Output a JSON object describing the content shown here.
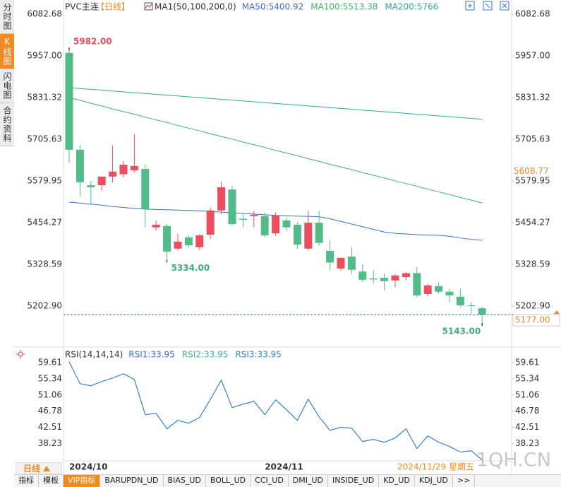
{
  "chart_data": [
    {
      "type": "candlestick",
      "title": "PVC主连",
      "period": "【日线】",
      "indicator": "MA1(50,100,200,0)",
      "up_color": "#ee4d5d",
      "down_color": "#52bb88",
      "categories": [
        "2024/10",
        null,
        null,
        null,
        null,
        null,
        null,
        null,
        null,
        null,
        null,
        null,
        null,
        null,
        null,
        null,
        null,
        null,
        "2024/11",
        null,
        null,
        null,
        null,
        null,
        null,
        null,
        null,
        null,
        null,
        null,
        null,
        null,
        null,
        null,
        null,
        null,
        null,
        null,
        null
      ],
      "open": [
        5966,
        5674,
        5567,
        5567,
        5593,
        5600,
        5612,
        5616,
        5440,
        5444,
        5376,
        5410,
        5380,
        5418,
        5491,
        5554,
        5466,
        5474,
        5474,
        5422,
        5461,
        5448,
        5376,
        5454,
        5369,
        5316,
        5352,
        5307,
        5286,
        5288,
        5280,
        5290,
        5302,
        5239,
        5263,
        5246,
        5231,
        5205,
        5196
      ],
      "high": [
        5982,
        5689,
        5580,
        5590,
        5687,
        5640,
        5721,
        5630,
        5460,
        5450,
        5420,
        5416,
        5420,
        5500,
        5578,
        5565,
        5480,
        5490,
        5485,
        5485,
        5470,
        5455,
        5490,
        5490,
        5400,
        5350,
        5380,
        5330,
        5310,
        5300,
        5300,
        5305,
        5320,
        5270,
        5275,
        5255,
        5255,
        5215,
        5200
      ],
      "low": [
        5635,
        5533,
        5508,
        5550,
        5575,
        5590,
        5605,
        5440,
        5430,
        5334,
        5370,
        5380,
        5372,
        5405,
        5480,
        5445,
        5440,
        5440,
        5410,
        5415,
        5430,
        5375,
        5370,
        5385,
        5310,
        5310,
        5300,
        5275,
        5270,
        5250,
        5260,
        5280,
        5230,
        5232,
        5240,
        5215,
        5200,
        5180,
        5143
      ],
      "close": [
        5674,
        5576,
        5561,
        5593,
        5608,
        5629,
        5625,
        5495,
        5448,
        5367,
        5397,
        5386,
        5416,
        5491,
        5561,
        5450,
        5463,
        5478,
        5416,
        5476,
        5440,
        5388,
        5454,
        5393,
        5334,
        5348,
        5312,
        5282,
        5283,
        5278,
        5295,
        5302,
        5235,
        5265,
        5246,
        5235,
        5205,
        5203,
        5177
      ],
      "series": [
        {
          "name": "MA50:5400.92",
          "color": "#3a6fd0",
          "values": [
            5516,
            5513,
            5510,
            5507,
            5503,
            5500,
            5497,
            5495,
            5494,
            5493,
            5492,
            5491,
            5490,
            5488,
            5486,
            5484,
            5482,
            5480,
            5478,
            5476,
            5475,
            5474,
            5473,
            5472,
            5466,
            5458,
            5450,
            5442,
            5434,
            5426,
            5422,
            5420,
            5418,
            5417,
            5416,
            5413,
            5408,
            5404,
            5400.92
          ]
        },
        {
          "name": "MA100:5513.38",
          "color": "#3fb36a",
          "values": [
            5831,
            5823,
            5814,
            5806,
            5797,
            5789,
            5781,
            5772,
            5764,
            5756,
            5747,
            5739,
            5731,
            5722,
            5714,
            5706,
            5697,
            5689,
            5681,
            5672,
            5664,
            5656,
            5647,
            5639,
            5630,
            5622,
            5614,
            5605,
            5597,
            5589,
            5580,
            5572,
            5564,
            5555,
            5547,
            5539,
            5530,
            5522,
            5513.38
          ]
        },
        {
          "name": "MA200:5766",
          "color": "#32a79a",
          "values": [
            5861,
            5858.5,
            5856,
            5853.5,
            5851,
            5848.5,
            5846,
            5843.5,
            5841,
            5838.5,
            5836,
            5833.5,
            5831,
            5828.5,
            5826,
            5823.5,
            5821,
            5818.5,
            5816,
            5813.5,
            5811,
            5808.5,
            5806,
            5803.5,
            5801,
            5798.5,
            5796,
            5793.5,
            5791,
            5788.5,
            5786,
            5783.5,
            5781,
            5778.5,
            5776,
            5773.5,
            5771,
            5768.5,
            5766
          ]
        }
      ],
      "annotations": [
        {
          "kind": "high",
          "value": 5982,
          "label": "5982.00",
          "color": "#ee4d5d"
        },
        {
          "kind": "low",
          "value": 5334,
          "label": "5334.00",
          "color": "#3fae7a"
        },
        {
          "kind": "low",
          "value": 5143,
          "label": "5143.00",
          "color": "#3fae7a"
        }
      ],
      "last_price": {
        "value": 5177,
        "label": "5177.00",
        "color": "#f08a24",
        "line_color": "#3a6fd0"
      },
      "marker_price": {
        "value": 5608.77,
        "label": "5608.77",
        "color": "#f08a24"
      },
      "ylim": [
        5124,
        6108.2
      ],
      "yticks": [
        6082.68,
        {
          "value": 5957,
          "label": "5957.00"
        },
        5831.32,
        5705.63,
        5579.95,
        5454.27,
        5328.59,
        {
          "value": 5202.9,
          "label": "5202.90"
        }
      ],
      "grid": false
    },
    {
      "type": "line",
      "title": "RSI(14,14,14)",
      "series": [
        {
          "name": "RSI1:33.95",
          "color": "#3a6fd0",
          "values": [
            59.8,
            54.03,
            53.48,
            54.59,
            55.52,
            56.64,
            55.15,
            45.85,
            46.22,
            42.14,
            44.37,
            43.62,
            45.11,
            49.94,
            54.96,
            47.71,
            48.64,
            49.39,
            45.85,
            49.76,
            47.15,
            44.37,
            49.94,
            45.3,
            41.76,
            42.51,
            42.32,
            38.79,
            39.35,
            38.6,
            39.72,
            42.14,
            36.93,
            40.28,
            38.6,
            37.49,
            36.0,
            36.37,
            33.95
          ]
        },
        {
          "name": "RSI2:33.95",
          "color": "#3fb39a",
          "values": [
            59.8,
            54.03,
            53.48,
            54.59,
            55.52,
            56.64,
            55.15,
            45.85,
            46.22,
            42.14,
            44.37,
            43.62,
            45.11,
            49.94,
            54.96,
            47.71,
            48.64,
            49.39,
            45.85,
            49.76,
            47.15,
            44.37,
            49.94,
            45.3,
            41.76,
            42.51,
            42.32,
            38.79,
            39.35,
            38.6,
            39.72,
            42.14,
            36.93,
            40.28,
            38.6,
            37.49,
            36.0,
            36.37,
            33.95
          ]
        },
        {
          "name": "RSI3:33.95",
          "color": "#3a80d8",
          "values": [
            59.8,
            54.03,
            53.48,
            54.59,
            55.52,
            56.64,
            55.15,
            45.85,
            46.22,
            42.14,
            44.37,
            43.62,
            45.11,
            49.94,
            54.96,
            47.71,
            48.64,
            49.39,
            45.85,
            49.76,
            47.15,
            44.37,
            49.94,
            45.3,
            41.76,
            42.51,
            42.32,
            38.79,
            39.35,
            38.6,
            39.72,
            42.14,
            36.93,
            40.28,
            38.6,
            37.49,
            36.0,
            36.37,
            33.95
          ]
        }
      ],
      "ylim": [
        33.7,
        62.0
      ],
      "yticks": [
        59.61,
        55.34,
        51.06,
        46.78,
        42.51,
        38.23
      ],
      "grid": false
    }
  ],
  "ui": {
    "side_tabs": [
      "分时图",
      "K线图",
      "闪电图",
      "合约资料"
    ],
    "active_side_tab": 1,
    "period_button": "日线",
    "last_date": "2024/11/29 星期五",
    "watermark": "1QH.CN",
    "bottom_tabs": [
      "指标",
      "模板",
      "VIP指标",
      "BARUPDN_UD",
      "BIAS_UD",
      "BOLL_UD",
      "CCI_UD",
      "DMI_UD",
      "INSIDE_UD",
      "KD_UD",
      "KDJ_UD",
      ">>"
    ],
    "active_bottom_tab": 2
  }
}
